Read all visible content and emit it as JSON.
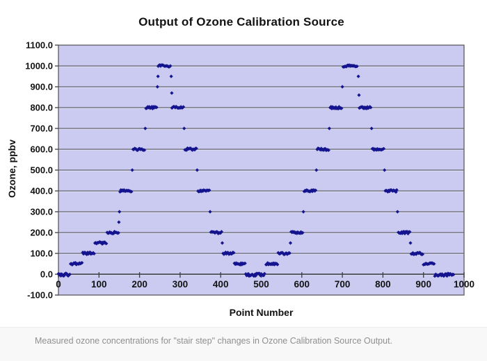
{
  "title": "Output of Ozone Calibration Source",
  "caption": "Measured ozone concentrations for \"stair step\" changes in Ozone Calibration Source Output.",
  "chart_data": {
    "type": "scatter",
    "title": "Output of Ozone Calibration Source",
    "xlabel": "Point Number",
    "ylabel": "Ozone, ppbv",
    "xlim": [
      0,
      1000
    ],
    "ylim": [
      -100,
      1100
    ],
    "xticks": [
      0,
      100,
      200,
      300,
      400,
      500,
      600,
      700,
      800,
      900,
      1000
    ],
    "yticks": [
      1100,
      1000,
      900,
      800,
      700,
      600,
      500,
      400,
      300,
      200,
      100,
      0,
      -100
    ],
    "ytick_labels": [
      "1100.0",
      "1000.0",
      "900.0",
      "800.0",
      "700.0",
      "600.0",
      "500.0",
      "400.0",
      "300.0",
      "200.0",
      "100.0",
      "0.0",
      "-100.0"
    ],
    "xtick_labels": [
      "0",
      "100",
      "200",
      "300",
      "400",
      "500",
      "600",
      "700",
      "800",
      "900",
      "1000"
    ],
    "grid": true,
    "legend": false,
    "marker": "diamond",
    "marker_color": "#14148f",
    "plot_bg": "#cbcbf2",
    "gridline_color": "#63636b",
    "axis_color": "#3c3c46",
    "point_spacing": 2,
    "jitter_ppbv": 5,
    "plateau_segments": [
      {
        "x0": 0,
        "x1": 28,
        "level": 0
      },
      {
        "x0": 30,
        "x1": 58,
        "level": 50
      },
      {
        "x0": 60,
        "x1": 88,
        "level": 100
      },
      {
        "x0": 90,
        "x1": 118,
        "level": 150
      },
      {
        "x0": 120,
        "x1": 148,
        "level": 200
      },
      {
        "x0": 152,
        "x1": 180,
        "level": 400
      },
      {
        "x0": 184,
        "x1": 212,
        "level": 600
      },
      {
        "x0": 216,
        "x1": 242,
        "level": 800
      },
      {
        "x0": 246,
        "x1": 276,
        "level": 1000
      },
      {
        "x0": 280,
        "x1": 308,
        "level": 800
      },
      {
        "x0": 312,
        "x1": 340,
        "level": 600
      },
      {
        "x0": 344,
        "x1": 372,
        "level": 400
      },
      {
        "x0": 376,
        "x1": 402,
        "level": 200
      },
      {
        "x0": 406,
        "x1": 432,
        "level": 100
      },
      {
        "x0": 434,
        "x1": 460,
        "level": 50
      },
      {
        "x0": 462,
        "x1": 509,
        "level": 0
      },
      {
        "x0": 512,
        "x1": 540,
        "level": 50
      },
      {
        "x0": 542,
        "x1": 570,
        "level": 100
      },
      {
        "x0": 574,
        "x1": 602,
        "level": 200
      },
      {
        "x0": 606,
        "x1": 634,
        "level": 400
      },
      {
        "x0": 638,
        "x1": 666,
        "level": 600
      },
      {
        "x0": 670,
        "x1": 698,
        "level": 800
      },
      {
        "x0": 702,
        "x1": 737,
        "level": 1000
      },
      {
        "x0": 742,
        "x1": 770,
        "level": 800
      },
      {
        "x0": 774,
        "x1": 802,
        "level": 600
      },
      {
        "x0": 806,
        "x1": 834,
        "level": 400
      },
      {
        "x0": 838,
        "x1": 866,
        "level": 200
      },
      {
        "x0": 870,
        "x1": 898,
        "level": 100
      },
      {
        "x0": 900,
        "x1": 926,
        "level": 50
      },
      {
        "x0": 928,
        "x1": 975,
        "level": 0
      }
    ],
    "transition_points": [
      {
        "x": 149,
        "y": 250
      },
      {
        "x": 150.5,
        "y": 300
      },
      {
        "x": 182,
        "y": 500
      },
      {
        "x": 214,
        "y": 700
      },
      {
        "x": 244,
        "y": 900
      },
      {
        "x": 245.5,
        "y": 950
      },
      {
        "x": 278,
        "y": 950
      },
      {
        "x": 279.5,
        "y": 870
      },
      {
        "x": 310,
        "y": 700
      },
      {
        "x": 342,
        "y": 500
      },
      {
        "x": 374,
        "y": 300
      },
      {
        "x": 404,
        "y": 150
      },
      {
        "x": 572,
        "y": 150
      },
      {
        "x": 604,
        "y": 300
      },
      {
        "x": 636,
        "y": 500
      },
      {
        "x": 668,
        "y": 700
      },
      {
        "x": 700,
        "y": 900
      },
      {
        "x": 739.5,
        "y": 950
      },
      {
        "x": 741,
        "y": 860
      },
      {
        "x": 772,
        "y": 700
      },
      {
        "x": 804,
        "y": 500
      },
      {
        "x": 836,
        "y": 300
      },
      {
        "x": 868,
        "y": 150
      }
    ]
  }
}
